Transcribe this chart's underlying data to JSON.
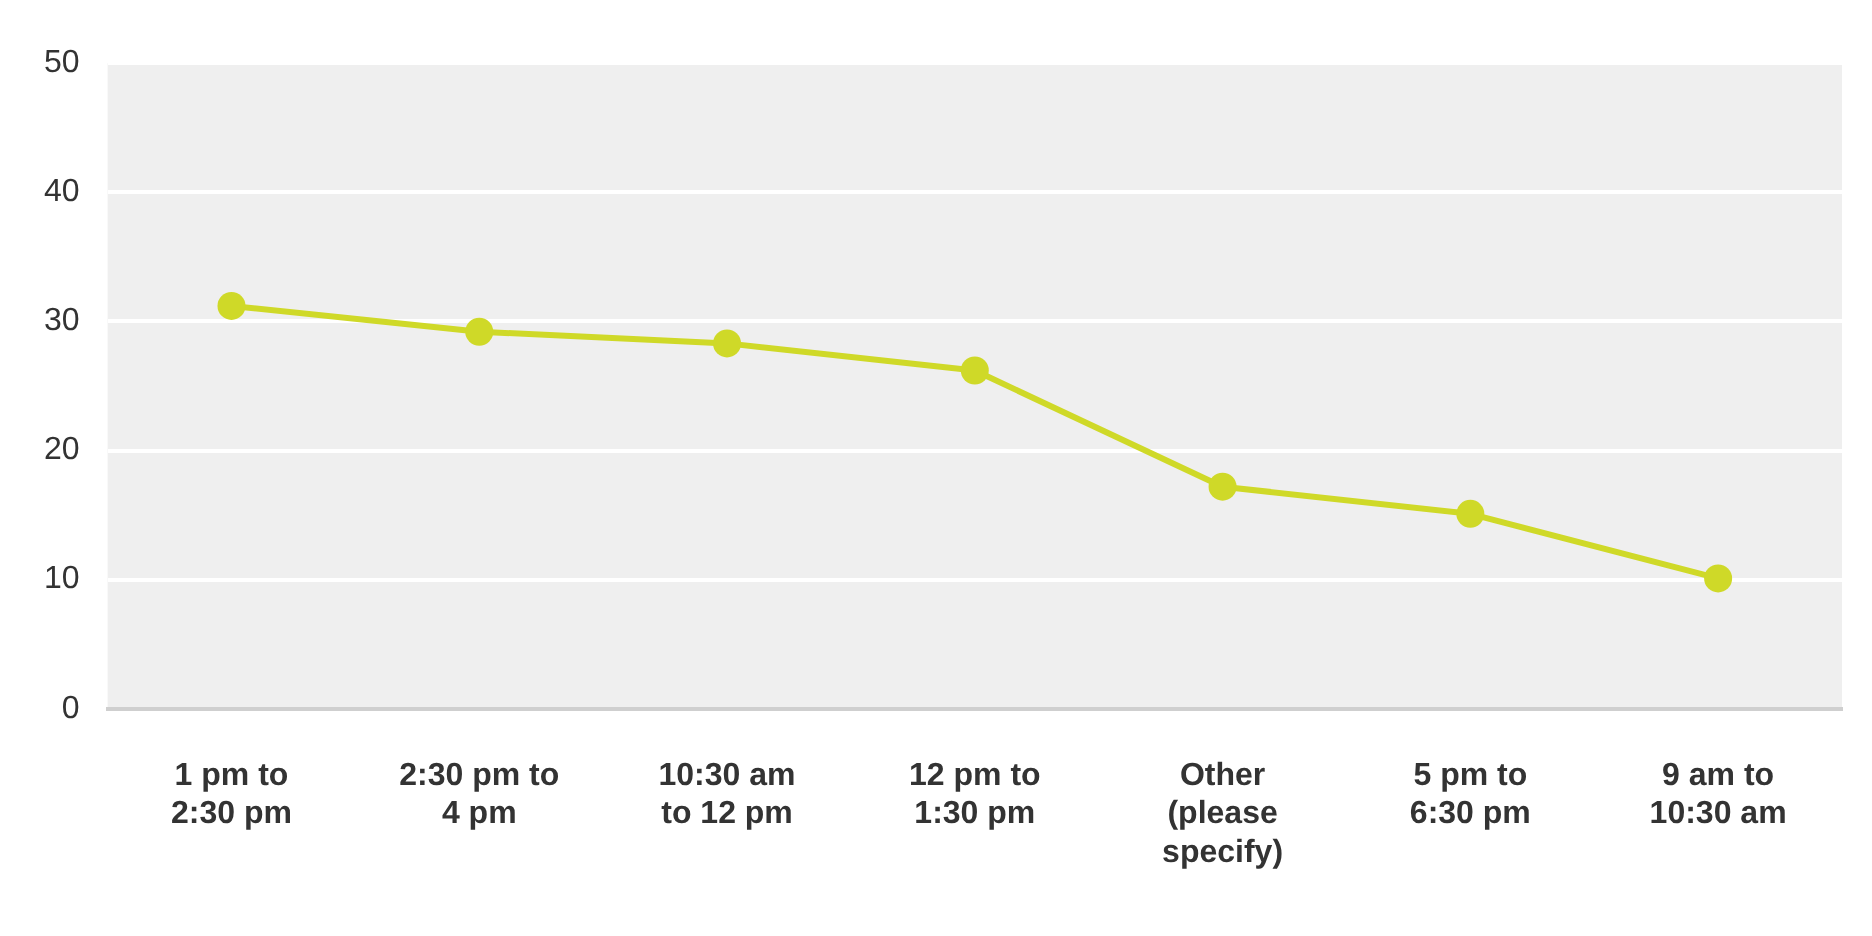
{
  "chart_data": {
    "type": "line",
    "categories": [
      "1 pm to 2:30 pm",
      "2:30 pm to 4 pm",
      "10:30 am to 12 pm",
      "12 pm to 1:30 pm",
      "Other (please specify)",
      "5 pm to 6:30 pm",
      "9 am to 10:30 am"
    ],
    "series": [
      {
        "color": "#cfd928",
        "values": [
          31.2,
          29.2,
          28.3,
          26.2,
          17.2,
          15.1,
          10.1
        ]
      }
    ],
    "ylim": [
      0,
      50
    ],
    "yticks": [
      0,
      10,
      20,
      30,
      40,
      50
    ],
    "grid": "y",
    "legend": false,
    "marker": "circle",
    "line_style": "solid"
  }
}
